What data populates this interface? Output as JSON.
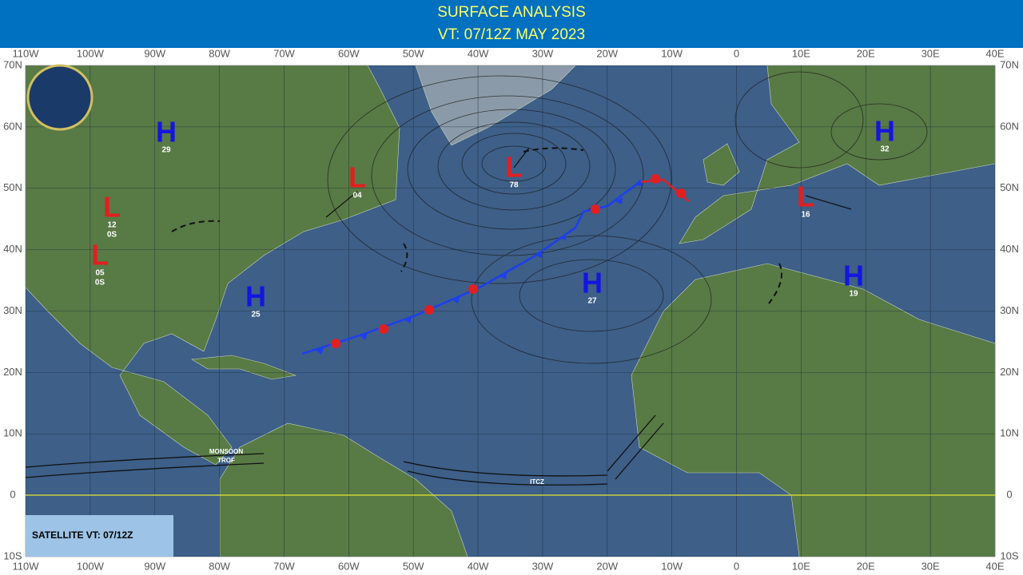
{
  "header": {
    "title": "SURFACE ANALYSIS",
    "valid_time": "VT: 07/12Z MAY 2023"
  },
  "longitudes": [
    "110W",
    "100W",
    "90W",
    "80W",
    "70W",
    "60W",
    "50W",
    "40W",
    "30W",
    "20W",
    "10W",
    "0",
    "10E",
    "20E",
    "30E",
    "40E"
  ],
  "latitudes": [
    "70N",
    "60N",
    "50N",
    "40N",
    "30N",
    "20N",
    "10N",
    "0",
    "10S"
  ],
  "systems": [
    {
      "symbol": "H",
      "labels": [
        "29"
      ]
    },
    {
      "symbol": "L",
      "labels": [
        "04"
      ]
    },
    {
      "symbol": "L",
      "labels": [
        "78"
      ]
    },
    {
      "symbol": "H",
      "labels": [
        "32"
      ]
    },
    {
      "symbol": "L",
      "labels": [
        "12",
        "0S"
      ]
    },
    {
      "symbol": "L",
      "labels": [
        "05",
        "0S"
      ]
    },
    {
      "symbol": "H",
      "labels": [
        "25"
      ]
    },
    {
      "symbol": "H",
      "labels": [
        "27"
      ]
    },
    {
      "symbol": "L",
      "labels": [
        "16"
      ]
    },
    {
      "symbol": "H",
      "labels": [
        "19"
      ]
    }
  ],
  "annotations": {
    "monsoon": [
      "MONSOON",
      "TROF"
    ],
    "itcz": "ITCZ"
  },
  "satellite_box": "SATELLITE VT: 07/12Z"
}
